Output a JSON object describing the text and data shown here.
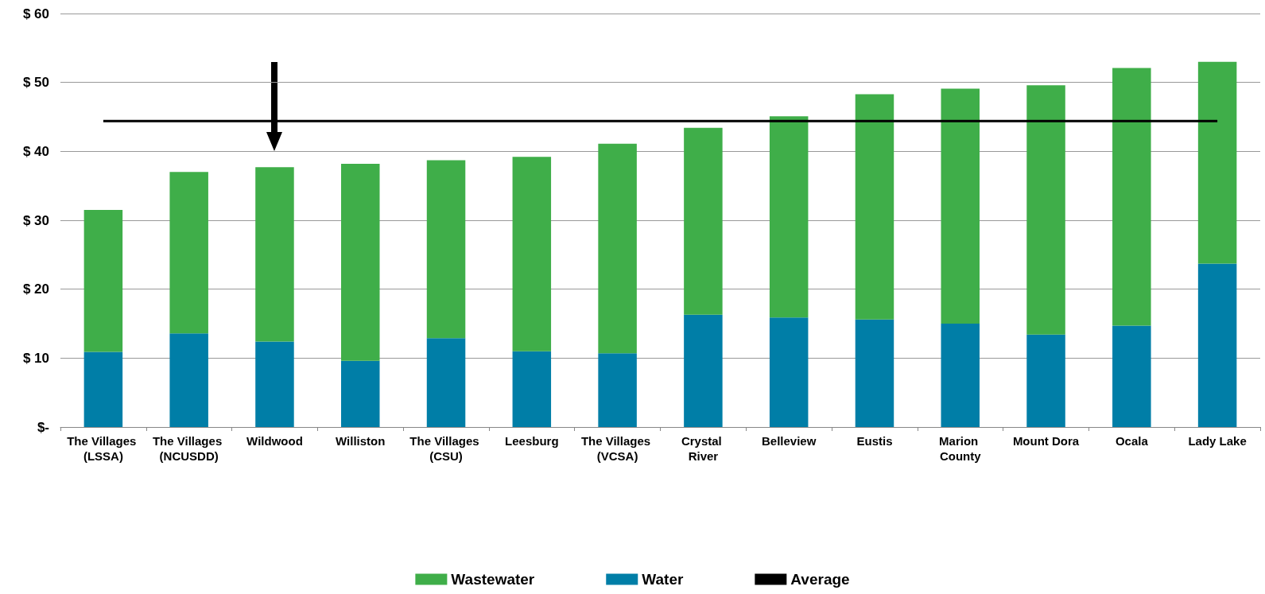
{
  "chart_data": {
    "type": "bar",
    "stacked": true,
    "categories": [
      "The Villages (LSSA)",
      "The Villages (NCUSDD)",
      "Wildwood",
      "Williston",
      "The Villages (CSU)",
      "Leesburg",
      "The Villages (VCSA)",
      "Crystal River",
      "Belleview",
      "Eustis",
      "Marion County",
      "Mount Dora",
      "Ocala",
      "Lady Lake"
    ],
    "series": [
      {
        "name": "Water",
        "color": "#007ea7",
        "values": [
          10.9,
          13.6,
          12.4,
          9.6,
          12.9,
          11.0,
          10.7,
          16.3,
          15.9,
          15.6,
          15.0,
          13.4,
          14.7,
          23.7
        ]
      },
      {
        "name": "Wastewater",
        "color": "#3fae49",
        "values": [
          20.6,
          23.4,
          25.3,
          28.6,
          25.8,
          28.2,
          30.4,
          27.1,
          29.2,
          32.7,
          34.1,
          36.2,
          37.4,
          29.3
        ]
      },
      {
        "name": "Average",
        "type": "line",
        "color": "#000000",
        "marker": "none",
        "values": [
          44.4,
          44.4,
          44.4,
          44.4,
          44.4,
          44.4,
          44.4,
          44.4,
          44.4,
          44.4,
          44.4,
          44.4,
          44.4,
          44.4
        ]
      }
    ],
    "ylim": [
      0,
      60
    ],
    "yticks": [
      {
        "value": 0,
        "label": "$-"
      },
      {
        "value": 10,
        "label": "$ 10"
      },
      {
        "value": 20,
        "label": "$ 20"
      },
      {
        "value": 30,
        "label": "$ 30"
      },
      {
        "value": 40,
        "label": "$ 40"
      },
      {
        "value": 50,
        "label": "$ 50"
      },
      {
        "value": 60,
        "label": "$ 60"
      }
    ],
    "grid": "y",
    "legend": "bottom"
  }
}
